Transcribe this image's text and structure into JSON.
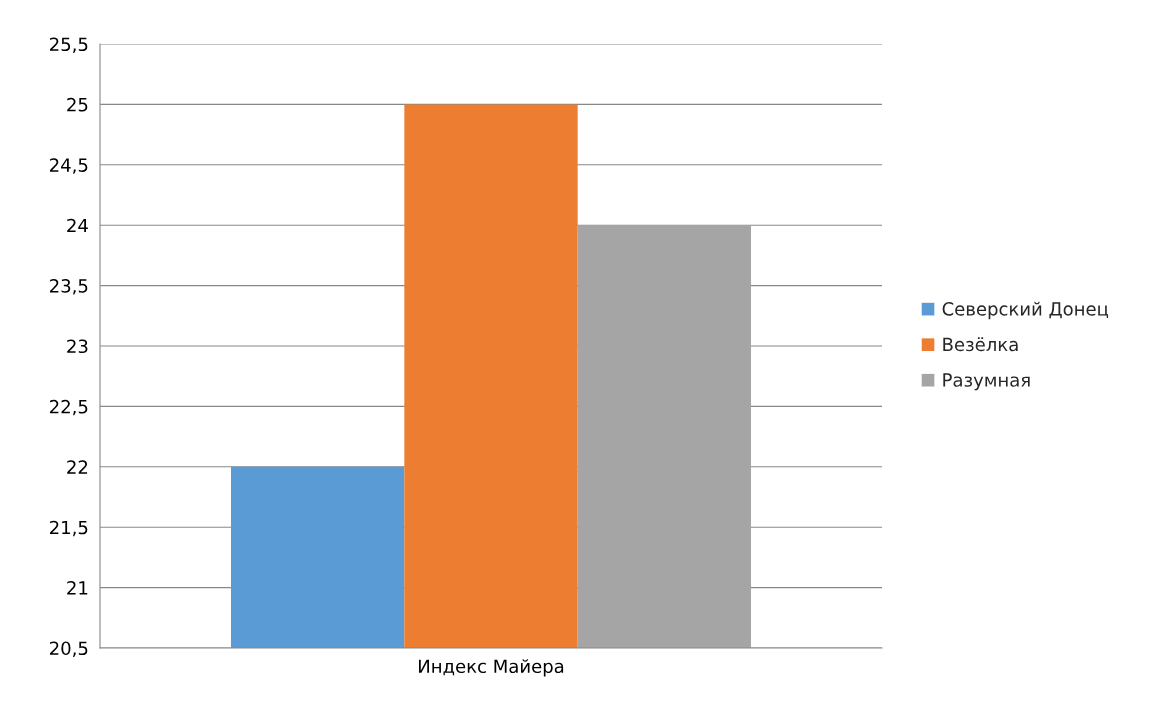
{
  "chart_data": {
    "type": "bar",
    "categories": [
      "Индекс Майера"
    ],
    "series": [
      {
        "name": "Северский Донец",
        "color": "#5b9bd5",
        "values": [
          22
        ]
      },
      {
        "name": "Везёлка",
        "color": "#ed7d31",
        "values": [
          25
        ]
      },
      {
        "name": "Разумная",
        "color": "#a5a5a5",
        "values": [
          24
        ]
      }
    ],
    "ylim": [
      20.5,
      25.5
    ],
    "yticks": [
      {
        "value": 20.5,
        "label": "20,5"
      },
      21,
      {
        "value": 21.5,
        "label": "21,5"
      },
      22,
      {
        "value": 22.5,
        "label": "22,5"
      },
      23,
      {
        "value": 23.5,
        "label": "23,5"
      },
      24,
      {
        "value": 24.5,
        "label": "24,5"
      },
      25,
      {
        "value": 25.5,
        "label": "25,5"
      }
    ],
    "grid": "y",
    "legend": "right"
  }
}
